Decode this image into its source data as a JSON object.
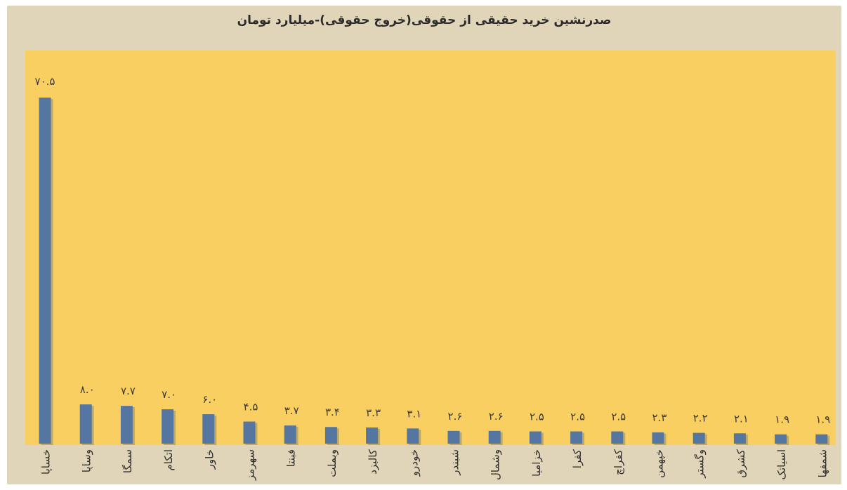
{
  "chart_data": {
    "type": "bar",
    "title": "صدرنشین خرید حقیقی از حقوقی(خروج حقوقی)-میلیارد تومان",
    "xlabel": "",
    "ylabel": "",
    "ylim": [
      0,
      75
    ],
    "grid": false,
    "legend": "none",
    "categories": [
      "خساپا",
      "وساپا",
      "سمگا",
      "اتکام",
      "خاور",
      "سهرمز",
      "فبنتا",
      "وبملت",
      "کالبزد",
      "خودرو",
      "شبندر",
      "وشمال",
      "خزامیا",
      "کفرا",
      "کفراچ",
      "خپهمن",
      "وگستر",
      "کشرق",
      "اسیاتک",
      "شمفها"
    ],
    "values": [
      70.5,
      8.0,
      7.7,
      7.0,
      6.0,
      4.5,
      3.7,
      3.4,
      3.3,
      3.1,
      2.6,
      2.6,
      2.5,
      2.5,
      2.5,
      2.3,
      2.2,
      2.1,
      1.9,
      1.9
    ],
    "value_labels": [
      "۷۰.۵",
      "۸.۰",
      "۷.۷",
      "۷.۰",
      "۶.۰",
      "۴.۵",
      "۳.۷",
      "۳.۴",
      "۳.۳",
      "۳.۱",
      "۲.۶",
      "۲.۶",
      "۲.۵",
      "۲.۵",
      "۲.۵",
      "۲.۳",
      "۲.۲",
      "۲.۱",
      "۱.۹",
      "۱.۹"
    ]
  },
  "colors": {
    "frame_background": "#e0d4b9",
    "plot_background": "#f9cf62",
    "bar": "#5576a0",
    "bar_shadow": "#8e8a6c"
  }
}
